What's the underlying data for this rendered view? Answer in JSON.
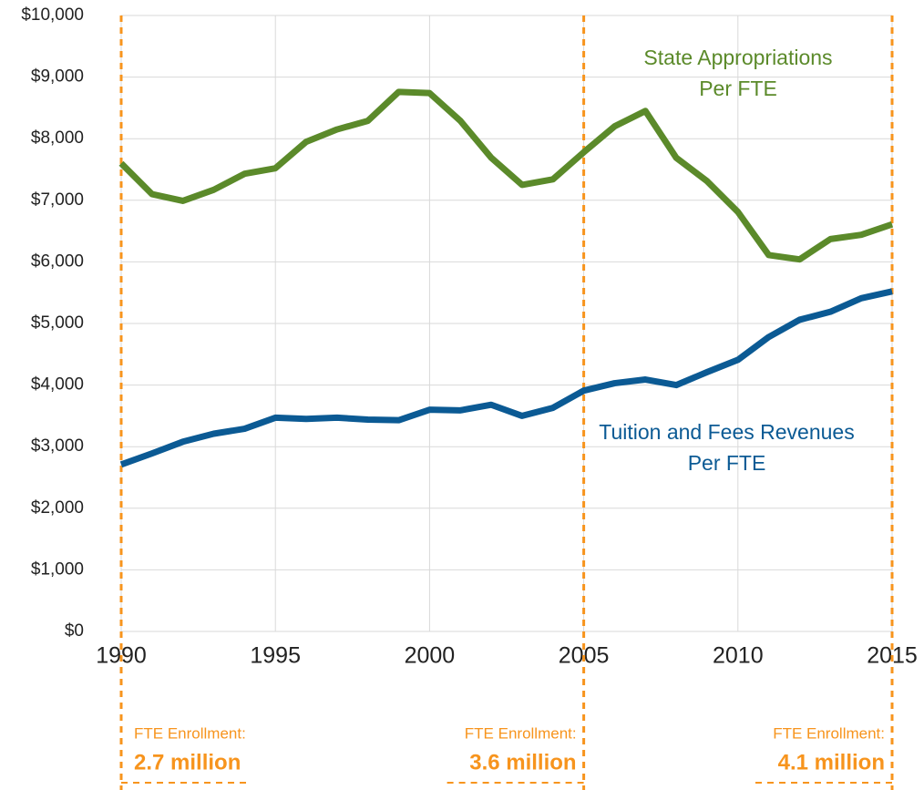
{
  "chart_data": {
    "type": "line",
    "x": [
      1990,
      1991,
      1992,
      1993,
      1994,
      1995,
      1996,
      1997,
      1998,
      1999,
      2000,
      2001,
      2002,
      2003,
      2004,
      2005,
      2006,
      2007,
      2008,
      2009,
      2010,
      2011,
      2012,
      2013,
      2014,
      2015
    ],
    "series": [
      {
        "name": "State Appropriations Per FTE",
        "color": "#5b8a2a",
        "values": [
          7600,
          7100,
          6990,
          7170,
          7430,
          7520,
          7950,
          8150,
          8290,
          8760,
          8740,
          8290,
          7690,
          7250,
          7340,
          7780,
          8200,
          8450,
          7690,
          7310,
          6810,
          6110,
          6040,
          6370,
          6440,
          6610
        ]
      },
      {
        "name": "Tuition and Fees Revenues Per FTE",
        "color": "#0b5a94",
        "values": [
          2710,
          2890,
          3080,
          3210,
          3290,
          3470,
          3450,
          3470,
          3440,
          3430,
          3600,
          3590,
          3680,
          3500,
          3630,
          3910,
          4030,
          4090,
          4000,
          4210,
          4410,
          4780,
          5060,
          5190,
          5410,
          5520
        ]
      }
    ],
    "xlim": [
      1990,
      2015
    ],
    "xticks": [
      1990,
      1995,
      2000,
      2005,
      2010,
      2015
    ],
    "ylim": [
      0,
      10000
    ],
    "yticks": [
      {
        "value": 0,
        "label": "$0"
      },
      {
        "value": 1000,
        "label": "$1,000"
      },
      {
        "value": 2000,
        "label": "$2,000"
      },
      {
        "value": 3000,
        "label": "$3,000"
      },
      {
        "value": 4000,
        "label": "$4,000"
      },
      {
        "value": 5000,
        "label": "$5,000"
      },
      {
        "value": 6000,
        "label": "$6,000"
      },
      {
        "value": 7000,
        "label": "$7,000"
      },
      {
        "value": 8000,
        "label": "$8,000"
      },
      {
        "value": 9000,
        "label": "$9,000"
      },
      {
        "value": 10000,
        "label": "$10,000"
      }
    ],
    "grid": true,
    "annotation_color": "#f7941d",
    "enrollment": [
      {
        "x": 1990,
        "title": "FTE Enrollment:",
        "value": "2.7 million"
      },
      {
        "x": 2005,
        "title": "FTE Enrollment:",
        "value": "3.6 million"
      },
      {
        "x": 2015,
        "title": "FTE Enrollment:",
        "value": "4.1 million"
      }
    ]
  }
}
